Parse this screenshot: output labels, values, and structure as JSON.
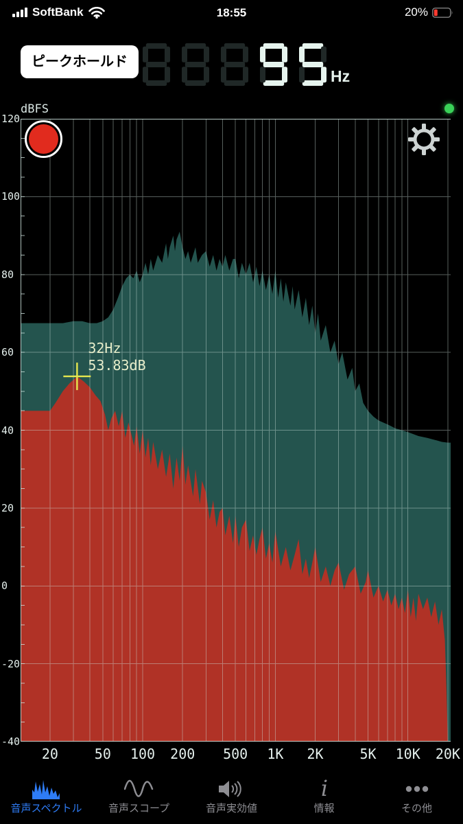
{
  "colors": {
    "background": "#000000",
    "accent_blue": "#2e7cf6",
    "inactive_gray": "#8e8e93",
    "spectrum_current": "#b03226",
    "spectrum_peak": "#24544e",
    "grid": "#cfe3de",
    "segment_lit": "#e6f4ee",
    "segment_ghost": "#202827",
    "record_red": "#e12b1e",
    "status_green": "#3ad158",
    "cursor_yellow": "#e6e84e",
    "battery_red": "#ff3b30"
  },
  "status_bar": {
    "carrier": "SoftBank",
    "time": "18:55",
    "battery_percent": "20%"
  },
  "header": {
    "peak_hold_button": "ピークホールド",
    "frequency_display": {
      "ghost_digits": "888",
      "value": "95",
      "unit": "Hz"
    }
  },
  "chart": {
    "axis_label": "dBFS",
    "cursor": {
      "freq": 32,
      "db": 53.83,
      "freq_label": "32Hz",
      "db_label": "53.83dB"
    }
  },
  "chart_data": {
    "type": "area",
    "x_scale": "log",
    "x_range": [
      20,
      20000
    ],
    "y_range": [
      -40,
      120
    ],
    "ylabel": "dBFS",
    "x_tick_values": [
      20,
      50,
      100,
      200,
      500,
      1000,
      2000,
      5000,
      10000,
      20000
    ],
    "x_tick_labels": [
      "20",
      "50",
      "100",
      "200",
      "500",
      "1K",
      "2K",
      "5K",
      "10K",
      "20K"
    ],
    "y_ticks": [
      120,
      100,
      80,
      60,
      40,
      20,
      0,
      -20,
      -40
    ],
    "grid_freqs": [
      20,
      30,
      40,
      50,
      60,
      70,
      80,
      90,
      100,
      200,
      300,
      400,
      500,
      600,
      700,
      800,
      900,
      1000,
      2000,
      3000,
      4000,
      5000,
      6000,
      7000,
      8000,
      9000,
      10000,
      20000
    ],
    "cursor_point": {
      "freq": 32,
      "db": 53.83
    },
    "series": [
      {
        "name": "peak-hold",
        "color": "#24544e",
        "points": [
          [
            20,
            67.5
          ],
          [
            25,
            67.5
          ],
          [
            30,
            68
          ],
          [
            35,
            68
          ],
          [
            40,
            67.5
          ],
          [
            45,
            67.5
          ],
          [
            50,
            68
          ],
          [
            55,
            69
          ],
          [
            60,
            71
          ],
          [
            65,
            74
          ],
          [
            70,
            77
          ],
          [
            75,
            79
          ],
          [
            80,
            80
          ],
          [
            85,
            79
          ],
          [
            90,
            81
          ],
          [
            95,
            78
          ],
          [
            100,
            80
          ],
          [
            105,
            83
          ],
          [
            110,
            80
          ],
          [
            115,
            84
          ],
          [
            120,
            81
          ],
          [
            130,
            85
          ],
          [
            140,
            83
          ],
          [
            150,
            88
          ],
          [
            155,
            84
          ],
          [
            160,
            87
          ],
          [
            170,
            90
          ],
          [
            175,
            86
          ],
          [
            180,
            89
          ],
          [
            190,
            91
          ],
          [
            200,
            87
          ],
          [
            210,
            84
          ],
          [
            220,
            86
          ],
          [
            230,
            83
          ],
          [
            250,
            87
          ],
          [
            260,
            83
          ],
          [
            280,
            85
          ],
          [
            300,
            86
          ],
          [
            320,
            82
          ],
          [
            340,
            85
          ],
          [
            360,
            81
          ],
          [
            380,
            84
          ],
          [
            400,
            82
          ],
          [
            420,
            85
          ],
          [
            450,
            81
          ],
          [
            480,
            84
          ],
          [
            500,
            84
          ],
          [
            530,
            79
          ],
          [
            560,
            83
          ],
          [
            600,
            80
          ],
          [
            640,
            83
          ],
          [
            680,
            78
          ],
          [
            720,
            82
          ],
          [
            760,
            77
          ],
          [
            800,
            81
          ],
          [
            850,
            76
          ],
          [
            900,
            80
          ],
          [
            950,
            75
          ],
          [
            1000,
            81
          ],
          [
            1050,
            74
          ],
          [
            1100,
            79
          ],
          [
            1150,
            73
          ],
          [
            1200,
            78
          ],
          [
            1300,
            72
          ],
          [
            1350,
            77
          ],
          [
            1400,
            71
          ],
          [
            1500,
            76
          ],
          [
            1600,
            69
          ],
          [
            1700,
            74
          ],
          [
            1800,
            67
          ],
          [
            1900,
            72
          ],
          [
            2000,
            65
          ],
          [
            2100,
            70
          ],
          [
            2200,
            63
          ],
          [
            2400,
            67
          ],
          [
            2600,
            60
          ],
          [
            2800,
            63
          ],
          [
            3000,
            57
          ],
          [
            3200,
            60
          ],
          [
            3500,
            53
          ],
          [
            3800,
            56
          ],
          [
            4000,
            50
          ],
          [
            4300,
            52
          ],
          [
            4600,
            47
          ],
          [
            5000,
            45
          ],
          [
            5500,
            43.5
          ],
          [
            6000,
            42.5
          ],
          [
            6500,
            42
          ],
          [
            7000,
            41.5
          ],
          [
            7500,
            41
          ],
          [
            8000,
            40.5
          ],
          [
            9000,
            40
          ],
          [
            10000,
            39.5
          ],
          [
            11000,
            39
          ],
          [
            12000,
            38.5
          ],
          [
            14000,
            38
          ],
          [
            16000,
            37.5
          ],
          [
            18000,
            37
          ],
          [
            20000,
            36.8
          ]
        ]
      },
      {
        "name": "current",
        "color": "#b03226",
        "points": [
          [
            20,
            45
          ],
          [
            22,
            47
          ],
          [
            25,
            50
          ],
          [
            28,
            52
          ],
          [
            32,
            53.8
          ],
          [
            36,
            52.5
          ],
          [
            40,
            51
          ],
          [
            44,
            49
          ],
          [
            48,
            47.5
          ],
          [
            52,
            44
          ],
          [
            55,
            40
          ],
          [
            58,
            43
          ],
          [
            62,
            45
          ],
          [
            66,
            41
          ],
          [
            70,
            45
          ],
          [
            74,
            38
          ],
          [
            78,
            42
          ],
          [
            82,
            39
          ],
          [
            86,
            36
          ],
          [
            90,
            41
          ],
          [
            95,
            34
          ],
          [
            100,
            40
          ],
          [
            105,
            33
          ],
          [
            110,
            38
          ],
          [
            115,
            31
          ],
          [
            120,
            37
          ],
          [
            130,
            30
          ],
          [
            140,
            35
          ],
          [
            150,
            28
          ],
          [
            160,
            34
          ],
          [
            170,
            25
          ],
          [
            180,
            33
          ],
          [
            190,
            27
          ],
          [
            200,
            36
          ],
          [
            210,
            26
          ],
          [
            220,
            31
          ],
          [
            240,
            23
          ],
          [
            250,
            30
          ],
          [
            270,
            21
          ],
          [
            280,
            27
          ],
          [
            300,
            24
          ],
          [
            320,
            17
          ],
          [
            340,
            22
          ],
          [
            360,
            15
          ],
          [
            380,
            19
          ],
          [
            400,
            20
          ],
          [
            420,
            13
          ],
          [
            450,
            18
          ],
          [
            480,
            11
          ],
          [
            500,
            18
          ],
          [
            530,
            10
          ],
          [
            560,
            15
          ],
          [
            600,
            17
          ],
          [
            640,
            9
          ],
          [
            680,
            13
          ],
          [
            720,
            8
          ],
          [
            760,
            12
          ],
          [
            800,
            15
          ],
          [
            850,
            7
          ],
          [
            900,
            11
          ],
          [
            950,
            6
          ],
          [
            1000,
            14
          ],
          [
            1100,
            5
          ],
          [
            1200,
            10
          ],
          [
            1300,
            4
          ],
          [
            1400,
            8
          ],
          [
            1500,
            12
          ],
          [
            1600,
            3
          ],
          [
            1700,
            7
          ],
          [
            1800,
            2
          ],
          [
            1900,
            6
          ],
          [
            2000,
            10
          ],
          [
            2200,
            1
          ],
          [
            2400,
            5
          ],
          [
            2600,
            0
          ],
          [
            2800,
            4
          ],
          [
            3000,
            6
          ],
          [
            3300,
            -1
          ],
          [
            3600,
            3
          ],
          [
            4000,
            5
          ],
          [
            4400,
            -2
          ],
          [
            4800,
            1
          ],
          [
            5000,
            4
          ],
          [
            5500,
            -3
          ],
          [
            6000,
            0
          ],
          [
            6500,
            -4
          ],
          [
            7000,
            -1
          ],
          [
            7500,
            -5
          ],
          [
            8000,
            -2
          ],
          [
            8500,
            -6
          ],
          [
            9000,
            -3
          ],
          [
            9500,
            -7
          ],
          [
            10000,
            -1
          ],
          [
            10500,
            -8
          ],
          [
            11000,
            -3
          ],
          [
            11500,
            -9
          ],
          [
            12000,
            -2
          ],
          [
            13000,
            -6
          ],
          [
            14000,
            -3
          ],
          [
            15000,
            -8
          ],
          [
            16000,
            -4
          ],
          [
            17000,
            -10
          ],
          [
            18000,
            -6
          ],
          [
            19000,
            -14
          ],
          [
            19500,
            -26
          ],
          [
            20000,
            -40
          ]
        ]
      }
    ]
  },
  "tab_bar": {
    "items": [
      {
        "label": "音声スペクトル",
        "icon": "spectrum-icon",
        "active": true
      },
      {
        "label": "音声スコープ",
        "icon": "scope-icon",
        "active": false
      },
      {
        "label": "音声実効値",
        "icon": "speaker-icon",
        "active": false
      },
      {
        "label": "情報",
        "icon": "info-icon",
        "active": false
      },
      {
        "label": "その他",
        "icon": "ellipsis-icon",
        "active": false
      }
    ]
  }
}
